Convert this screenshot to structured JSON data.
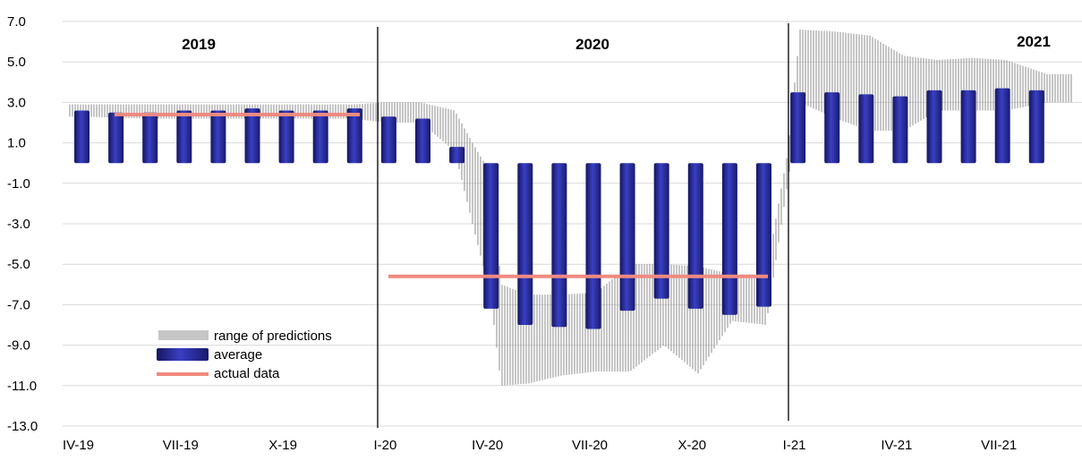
{
  "chart_data": {
    "type": "bar",
    "title": "",
    "xlabel": "",
    "ylabel": "",
    "ylim": [
      -13,
      7
    ],
    "y_ticks": [
      "7.0",
      "5.0",
      "3.0",
      "1.0",
      "-1.0",
      "-3.0",
      "-5.0",
      "-7.0",
      "-9.0",
      "-11.0",
      "-13.0"
    ],
    "x_ticks": [
      "IV-19",
      "VII-19",
      "X-19",
      "I-20",
      "IV-20",
      "VII-20",
      "X-20",
      "I-21",
      "IV-21",
      "VII-21"
    ],
    "grid": true,
    "year_labels": [
      "2019",
      "2020",
      "2021"
    ],
    "legend": {
      "position": "bottom-left",
      "entries": [
        "range of predictions",
        "average",
        "actual data"
      ]
    },
    "colors": {
      "average": "#2b2fa3",
      "range": "#9a9a9a",
      "actual": "#f08a80",
      "grid": "#d9d9d9"
    },
    "series": [
      {
        "name": "average",
        "periods": [
          "IV-19",
          "V-19",
          "VI-19",
          "VII-19",
          "VIII-19",
          "IX-19",
          "X-19",
          "XI-19",
          "XII-19",
          "I-20",
          "II-20",
          "III-20",
          "IV-20",
          "V-20",
          "VI-20",
          "VII-20",
          "VIII-20",
          "IX-20",
          "X-20",
          "XI-20",
          "XII-20",
          "I-21",
          "II-21",
          "III-21",
          "IV-21",
          "V-21",
          "VI-21",
          "VII-21",
          "VIII-21"
        ],
        "values": [
          2.6,
          2.5,
          2.5,
          2.6,
          2.6,
          2.7,
          2.6,
          2.6,
          2.7,
          2.3,
          2.2,
          0.8,
          -7.2,
          -8.0,
          -8.1,
          -8.2,
          -7.3,
          -6.7,
          -7.2,
          -7.5,
          -7.1,
          3.5,
          3.5,
          3.4,
          3.3,
          3.6,
          3.6,
          3.7,
          3.6
        ]
      },
      {
        "name": "range of predictions",
        "periods": [
          "IV-19",
          "VI-19",
          "VIII-19",
          "X-19",
          "XII-19",
          "I-20",
          "II-20",
          "III-20",
          "mid III-20",
          "IV-20",
          "mid IV-20",
          "V-20",
          "VI-20",
          "VII-20",
          "VIII-20",
          "IX-20",
          "X-20",
          "XI-20",
          "XII-20",
          "early I-21",
          "I-21",
          "II-21",
          "III-21",
          "IV-21",
          "V-21",
          "VI-21",
          "VII-21",
          "VIII-21"
        ],
        "low": [
          2.3,
          2.2,
          2.2,
          2.2,
          2.2,
          2.0,
          2.0,
          0.6,
          -3.0,
          -6.5,
          -11.0,
          -10.9,
          -10.5,
          -10.3,
          -10.3,
          -9.0,
          -10.4,
          -7.8,
          -8.0,
          -1.0,
          3.0,
          2.2,
          1.6,
          1.6,
          2.6,
          2.6,
          2.6,
          3.0
        ],
        "high": [
          2.9,
          2.9,
          2.9,
          2.9,
          2.9,
          3.0,
          3.0,
          2.6,
          1.0,
          -0.5,
          -6.0,
          -6.5,
          -6.5,
          -6.4,
          -5.0,
          -5.0,
          -5.1,
          -5.5,
          -5.5,
          0.5,
          6.6,
          6.5,
          6.3,
          5.3,
          5.1,
          5.2,
          5.1,
          4.4
        ]
      },
      {
        "name": "actual data",
        "segments": [
          {
            "from": "V-19",
            "to": "XII-19",
            "value": 2.4
          },
          {
            "from": "I-20",
            "to": "XII-20",
            "value": -5.6
          }
        ]
      }
    ]
  }
}
